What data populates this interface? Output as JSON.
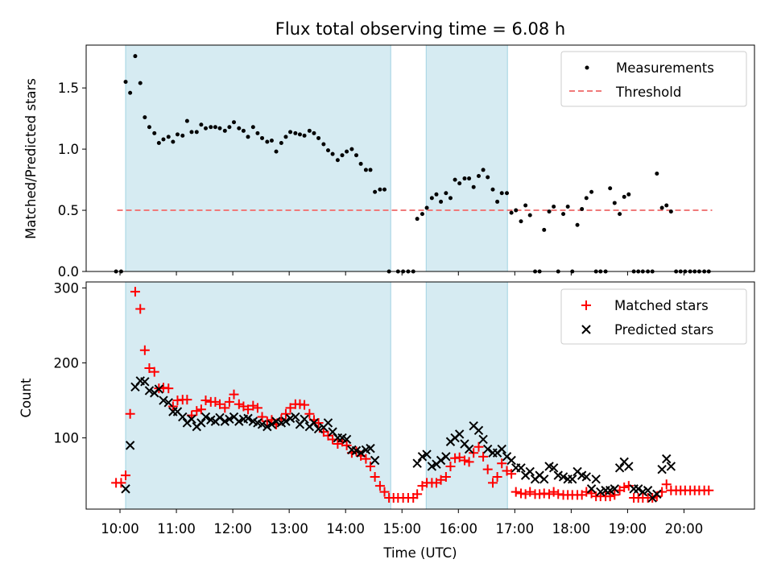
{
  "chart_data": [
    {
      "type": "scatter",
      "title": "Flux total observing time = 6.08 h",
      "xlabel": "",
      "ylabel": "Matched/Predicted stars",
      "xlim": [
        9.4,
        21.25
      ],
      "ylim": [
        0,
        1.85
      ],
      "yticks": [
        0.0,
        0.5,
        1.0,
        1.5
      ],
      "ytick_labels": [
        "0.0",
        "0.5",
        "1.0",
        "1.5"
      ],
      "shaded_intervals": [
        [
          10.1,
          14.8
        ],
        [
          15.43,
          16.87
        ]
      ],
      "legend": {
        "position": "top-right",
        "entries": [
          "Measurements",
          "Threshold"
        ]
      },
      "threshold": {
        "name": "Threshold",
        "y": 0.5,
        "x_range": [
          9.95,
          20.5
        ],
        "color": "#f07a7a"
      },
      "series": [
        {
          "name": "Measurements",
          "color": "#000000",
          "x": [
            9.93,
            10.02,
            10.1,
            10.18,
            10.27,
            10.36,
            10.44,
            10.52,
            10.61,
            10.69,
            10.77,
            10.86,
            10.94,
            11.02,
            11.11,
            11.19,
            11.27,
            11.36,
            11.44,
            11.52,
            11.61,
            11.69,
            11.77,
            11.86,
            11.94,
            12.02,
            12.11,
            12.19,
            12.27,
            12.36,
            12.44,
            12.52,
            12.61,
            12.69,
            12.77,
            12.86,
            12.94,
            13.02,
            13.11,
            13.19,
            13.27,
            13.36,
            13.44,
            13.52,
            13.61,
            13.69,
            13.77,
            13.86,
            13.94,
            14.02,
            14.11,
            14.19,
            14.27,
            14.36,
            14.44,
            14.52,
            14.61,
            14.69,
            14.77,
            14.93,
            15.02,
            15.11,
            15.2,
            15.27,
            15.36,
            15.44,
            15.53,
            15.61,
            15.69,
            15.78,
            15.86,
            15.94,
            16.02,
            16.11,
            16.19,
            16.27,
            16.36,
            16.44,
            16.52,
            16.61,
            16.69,
            16.77,
            16.86,
            16.94,
            17.02,
            17.11,
            17.19,
            17.27,
            17.36,
            17.44,
            17.52,
            17.61,
            17.69,
            17.77,
            17.86,
            17.94,
            18.02,
            18.11,
            18.19,
            18.27,
            18.36,
            18.44,
            18.52,
            18.61,
            18.69,
            18.77,
            18.86,
            18.94,
            19.02,
            19.11,
            19.19,
            19.27,
            19.36,
            19.44,
            19.52,
            19.61,
            19.69,
            19.77,
            19.86,
            19.94,
            20.02,
            20.11,
            20.19,
            20.27,
            20.36,
            20.44
          ],
          "y": [
            0.0,
            0.0,
            1.55,
            1.46,
            1.76,
            1.54,
            1.26,
            1.18,
            1.13,
            1.05,
            1.08,
            1.1,
            1.06,
            1.12,
            1.11,
            1.23,
            1.14,
            1.14,
            1.2,
            1.17,
            1.18,
            1.18,
            1.17,
            1.15,
            1.18,
            1.22,
            1.17,
            1.15,
            1.1,
            1.18,
            1.13,
            1.09,
            1.06,
            1.07,
            0.98,
            1.05,
            1.1,
            1.14,
            1.13,
            1.12,
            1.11,
            1.15,
            1.13,
            1.09,
            1.04,
            0.99,
            0.96,
            0.91,
            0.95,
            0.98,
            1.0,
            0.95,
            0.88,
            0.83,
            0.83,
            0.65,
            0.67,
            0.67,
            0.0,
            0.0,
            0.0,
            0.0,
            0.0,
            0.43,
            0.47,
            0.52,
            0.6,
            0.63,
            0.57,
            0.64,
            0.6,
            0.75,
            0.72,
            0.76,
            0.76,
            0.69,
            0.78,
            0.83,
            0.77,
            0.67,
            0.57,
            0.64,
            0.64,
            0.48,
            0.5,
            0.41,
            0.54,
            0.46,
            0.0,
            0.0,
            0.34,
            0.49,
            0.53,
            0.0,
            0.47,
            0.53,
            0.0,
            0.38,
            0.51,
            0.6,
            0.65,
            0.0,
            0.0,
            0.0,
            0.68,
            0.56,
            0.47,
            0.61,
            0.63,
            0.0,
            0.0,
            0.0,
            0.0,
            0.0,
            0.8,
            0.52,
            0.54,
            0.49,
            0.0,
            0.0,
            0.0,
            0.0,
            0.0,
            0.0,
            0.0,
            0.0
          ]
        }
      ]
    },
    {
      "type": "scatter",
      "title": "",
      "xlabel": "Time (UTC)",
      "ylabel": "Count",
      "xlim": [
        9.4,
        21.25
      ],
      "ylim": [
        5,
        308
      ],
      "yticks": [
        100,
        200,
        300
      ],
      "ytick_labels": [
        "100",
        "200",
        "300"
      ],
      "xticks": [
        10,
        11,
        12,
        13,
        14,
        15,
        16,
        17,
        18,
        19,
        20
      ],
      "xtick_labels": [
        "10:00",
        "11:00",
        "12:00",
        "13:00",
        "14:00",
        "15:00",
        "16:00",
        "17:00",
        "18:00",
        "19:00",
        "20:00"
      ],
      "shaded_intervals": [
        [
          10.1,
          14.8
        ],
        [
          15.43,
          16.87
        ]
      ],
      "legend": {
        "position": "top-right",
        "entries": [
          "Matched stars",
          "Predicted stars"
        ]
      },
      "series": [
        {
          "name": "Matched stars",
          "marker": "plus",
          "color": "#ff0000",
          "x": [
            9.93,
            10.02,
            10.1,
            10.18,
            10.27,
            10.36,
            10.44,
            10.52,
            10.61,
            10.69,
            10.77,
            10.86,
            10.94,
            11.02,
            11.11,
            11.19,
            11.27,
            11.36,
            11.44,
            11.52,
            11.61,
            11.69,
            11.77,
            11.86,
            11.94,
            12.02,
            12.11,
            12.19,
            12.27,
            12.36,
            12.44,
            12.52,
            12.61,
            12.69,
            12.77,
            12.86,
            12.94,
            13.02,
            13.11,
            13.19,
            13.27,
            13.36,
            13.44,
            13.52,
            13.61,
            13.69,
            13.77,
            13.86,
            13.94,
            14.02,
            14.11,
            14.19,
            14.27,
            14.36,
            14.44,
            14.52,
            14.61,
            14.69,
            14.77,
            14.85,
            14.93,
            15.02,
            15.11,
            15.2,
            15.27,
            15.36,
            15.44,
            15.53,
            15.61,
            15.69,
            15.78,
            15.86,
            15.94,
            16.02,
            16.11,
            16.19,
            16.27,
            16.36,
            16.44,
            16.52,
            16.61,
            16.69,
            16.77,
            16.86,
            16.94,
            17.02,
            17.11,
            17.19,
            17.27,
            17.36,
            17.44,
            17.52,
            17.61,
            17.69,
            17.77,
            17.86,
            17.94,
            18.02,
            18.11,
            18.19,
            18.27,
            18.36,
            18.44,
            18.52,
            18.61,
            18.69,
            18.77,
            18.86,
            18.94,
            19.02,
            19.11,
            19.19,
            19.27,
            19.36,
            19.44,
            19.52,
            19.61,
            19.69,
            19.77,
            19.86,
            19.94,
            20.02,
            20.11,
            20.19,
            20.27,
            20.36,
            20.44
          ],
          "y": [
            40,
            40,
            50,
            132,
            295,
            272,
            217,
            193,
            188,
            166,
            167,
            166,
            142,
            150,
            151,
            151,
            130,
            136,
            138,
            150,
            148,
            148,
            145,
            140,
            148,
            158,
            145,
            142,
            138,
            143,
            140,
            128,
            122,
            124,
            118,
            125,
            132,
            140,
            145,
            145,
            144,
            132,
            124,
            120,
            108,
            103,
            98,
            92,
            95,
            90,
            80,
            82,
            76,
            72,
            62,
            48,
            36,
            28,
            20,
            20,
            20,
            20,
            20,
            20,
            25,
            36,
            40,
            40,
            40,
            44,
            48,
            62,
            73,
            74,
            70,
            68,
            80,
            88,
            75,
            58,
            40,
            48,
            66,
            56,
            52,
            28,
            26,
            25,
            28,
            25,
            25,
            26,
            25,
            28,
            25,
            24,
            24,
            24,
            24,
            24,
            28,
            26,
            22,
            22,
            22,
            22,
            24,
            30,
            34,
            36,
            20,
            20,
            20,
            20,
            20,
            22,
            28,
            38,
            30,
            30,
            30,
            30,
            30,
            30,
            30,
            30,
            30
          ]
        },
        {
          "name": "Predicted stars",
          "marker": "x",
          "color": "#000000",
          "x": [
            10.1,
            10.18,
            10.27,
            10.36,
            10.44,
            10.52,
            10.61,
            10.69,
            10.77,
            10.86,
            10.94,
            11.02,
            11.11,
            11.19,
            11.27,
            11.36,
            11.44,
            11.52,
            11.61,
            11.69,
            11.77,
            11.86,
            11.94,
            12.02,
            12.11,
            12.19,
            12.27,
            12.36,
            12.44,
            12.52,
            12.61,
            12.69,
            12.77,
            12.86,
            12.94,
            13.02,
            13.11,
            13.19,
            13.27,
            13.36,
            13.44,
            13.52,
            13.61,
            13.69,
            13.77,
            13.86,
            13.94,
            14.02,
            14.11,
            14.19,
            14.27,
            14.36,
            14.44,
            14.52,
            15.27,
            15.36,
            15.44,
            15.53,
            15.61,
            15.69,
            15.78,
            15.86,
            15.94,
            16.02,
            16.11,
            16.19,
            16.27,
            16.36,
            16.44,
            16.52,
            16.61,
            16.69,
            16.77,
            16.86,
            16.94,
            17.02,
            17.11,
            17.19,
            17.27,
            17.36,
            17.44,
            17.52,
            17.61,
            17.69,
            17.77,
            17.86,
            17.94,
            18.02,
            18.11,
            18.19,
            18.27,
            18.36,
            18.44,
            18.52,
            18.61,
            18.69,
            18.77,
            18.86,
            18.94,
            19.02,
            19.11,
            19.19,
            19.27,
            19.36,
            19.44,
            19.52,
            19.61,
            19.69,
            19.77
          ],
          "y": [
            32,
            90,
            168,
            176,
            175,
            163,
            160,
            165,
            150,
            147,
            135,
            135,
            128,
            120,
            125,
            115,
            120,
            128,
            124,
            122,
            127,
            122,
            125,
            128,
            122,
            125,
            126,
            122,
            120,
            118,
            115,
            118,
            122,
            120,
            122,
            126,
            128,
            118,
            125,
            115,
            120,
            112,
            114,
            120,
            108,
            100,
            100,
            98,
            84,
            83,
            80,
            84,
            86,
            70,
            66,
            75,
            78,
            62,
            65,
            70,
            75,
            95,
            100,
            105,
            92,
            85,
            116,
            110,
            98,
            85,
            80,
            80,
            85,
            75,
            70,
            60,
            60,
            50,
            55,
            45,
            50,
            45,
            62,
            60,
            50,
            48,
            45,
            45,
            55,
            50,
            48,
            32,
            45,
            28,
            30,
            30,
            32,
            60,
            68,
            62,
            32,
            32,
            28,
            30,
            20,
            25,
            58,
            72,
            62
          ]
        }
      ]
    }
  ]
}
